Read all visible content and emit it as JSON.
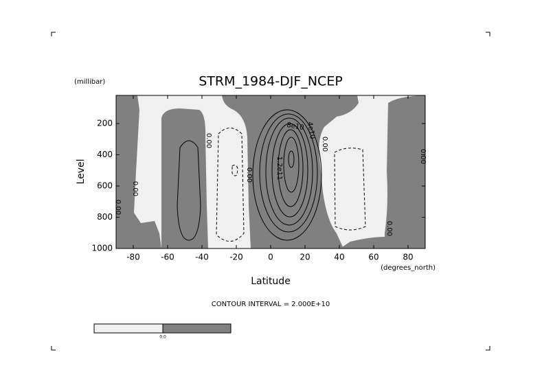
{
  "chart_data": {
    "type": "contour",
    "title": "STRM_1984-DJF_NCEP",
    "y_unit": "(millibar)",
    "ylabel": "Level",
    "xlabel": "Latitude",
    "x_unit": "(degrees_north)",
    "note": "CONTOUR INTERVAL = 2.000E+10",
    "xlim": [
      -90,
      90
    ],
    "xticks": [
      -80,
      -60,
      -40,
      -20,
      0,
      20,
      40,
      60,
      80
    ],
    "ylim": [
      1000,
      20
    ],
    "yticks": [
      200,
      400,
      600,
      800,
      1000
    ],
    "contour_labels": [
      "0.00",
      "0.00",
      "0.00",
      "0.00",
      "0.00",
      "0.00",
      "0.00",
      "8e10",
      "4e10",
      "1.2e11"
    ],
    "colorbar_label": "0.0",
    "colors": {
      "negative": "#f0f0f0",
      "positive": "#808080"
    }
  }
}
